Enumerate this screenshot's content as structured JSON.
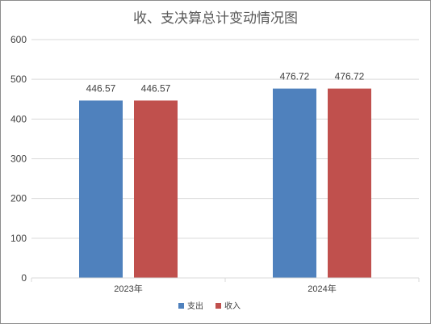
{
  "chart_data": {
    "type": "bar",
    "title": "收、支决算总计变动情况图",
    "categories": [
      "2023年",
      "2024年"
    ],
    "series": [
      {
        "name": "支出",
        "values": [
          446.57,
          476.72
        ],
        "color": "#4f81bd"
      },
      {
        "name": "收入",
        "values": [
          446.57,
          476.72
        ],
        "color": "#c0504d"
      }
    ],
    "data_labels": [
      [
        "446.57",
        "476.72"
      ],
      [
        "446.57",
        "476.72"
      ]
    ],
    "ylim": [
      0,
      600
    ],
    "yticks": [
      "0",
      "100",
      "200",
      "300",
      "400",
      "500",
      "600"
    ],
    "grid": true,
    "legend": "bottom",
    "gridline_color": "#d9d9d9"
  }
}
